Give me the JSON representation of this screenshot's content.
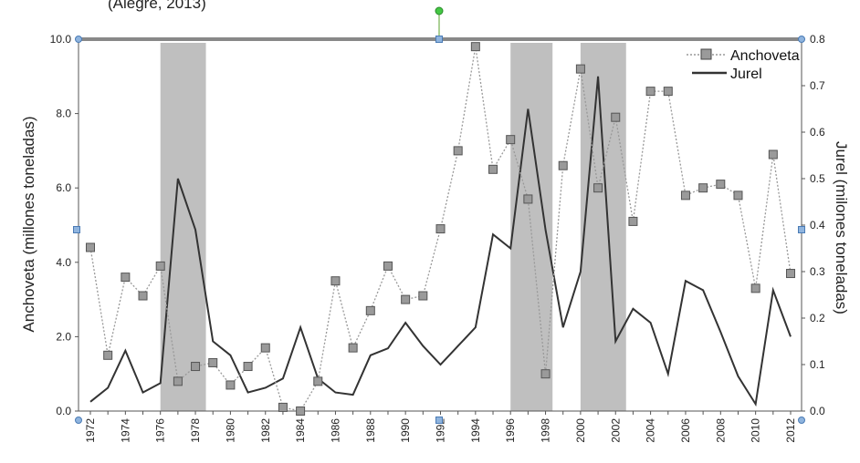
{
  "caption": "(Alegre, 2013)",
  "chart_data": {
    "type": "line",
    "x": [
      1972,
      1973,
      1974,
      1975,
      1976,
      1977,
      1978,
      1979,
      1980,
      1981,
      1982,
      1983,
      1984,
      1985,
      1986,
      1987,
      1988,
      1989,
      1990,
      1991,
      1992,
      1993,
      1994,
      1995,
      1996,
      1997,
      1998,
      1999,
      2000,
      2001,
      2002,
      2003,
      2004,
      2005,
      2006,
      2007,
      2008,
      2009,
      2010,
      2011,
      2012
    ],
    "x_tick_labels": [
      "1972",
      "1974",
      "1976",
      "1978",
      "1980",
      "1982",
      "1984",
      "1986",
      "1988",
      "1990",
      "1992",
      "1994",
      "1996",
      "1998",
      "2000",
      "2002",
      "2004",
      "2006",
      "2008",
      "2010",
      "2012"
    ],
    "series": [
      {
        "name": "Anchoveta",
        "axis": "left",
        "color": "#999999",
        "style": "dotted line with square markers",
        "values": [
          4.4,
          1.5,
          3.6,
          3.1,
          3.9,
          0.8,
          1.2,
          1.3,
          0.7,
          1.2,
          1.7,
          0.1,
          0.0,
          0.8,
          3.5,
          1.7,
          2.7,
          3.9,
          3.0,
          3.1,
          4.9,
          7.0,
          9.8,
          6.5,
          7.3,
          5.7,
          1.0,
          6.6,
          9.2,
          6.0,
          7.9,
          5.1,
          8.6,
          8.6,
          5.8,
          6.0,
          6.1,
          5.8,
          3.3,
          6.9,
          3.7
        ]
      },
      {
        "name": "Jurel",
        "axis": "right",
        "color": "#333333",
        "style": "solid line",
        "values": [
          0.02,
          0.05,
          0.13,
          0.04,
          0.06,
          0.5,
          0.39,
          0.15,
          0.12,
          0.04,
          0.05,
          0.07,
          0.18,
          0.07,
          0.04,
          0.035,
          0.12,
          0.135,
          0.19,
          0.14,
          0.1,
          0.14,
          0.18,
          0.38,
          0.35,
          0.65,
          0.39,
          0.18,
          0.3,
          0.72,
          0.15,
          0.22,
          0.19,
          0.08,
          0.28,
          0.26,
          0.17,
          0.075,
          0.015,
          0.26,
          0.16
        ]
      }
    ],
    "shaded_periods": [
      [
        1976,
        1978.6
      ],
      [
        1996,
        1998.4
      ],
      [
        2000,
        2002.6
      ]
    ],
    "y_left": {
      "label": "Anchoveta (millones toneladas)",
      "range": [
        0,
        10
      ],
      "ticks": [
        "0.0",
        "2.0",
        "4.0",
        "6.0",
        "8.0",
        "10.0"
      ]
    },
    "y_right": {
      "label": "Jurel (milones toneladas)",
      "range": [
        0,
        0.8
      ],
      "ticks": [
        "0.0",
        "0.1",
        "0.2",
        "0.3",
        "0.4",
        "0.5",
        "0.6",
        "0.7",
        "0.8"
      ]
    },
    "legend_position": "top-right",
    "shade_color": "#bfbfbf",
    "frame_color": "#888888"
  }
}
